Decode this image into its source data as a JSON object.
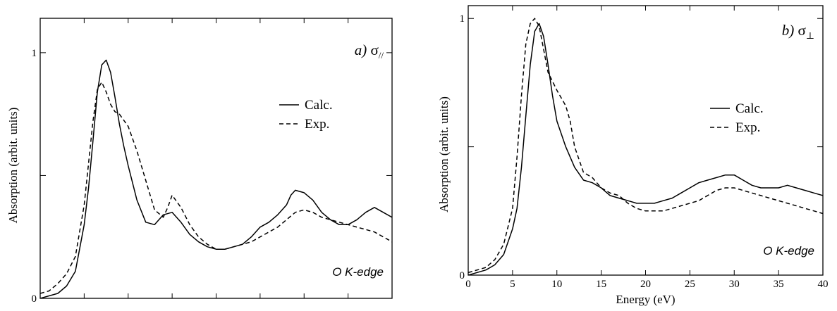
{
  "chart_data": [
    {
      "type": "line",
      "panel_label": "a) σ",
      "panel_subscript": "//",
      "edge_label": "O K-edge",
      "xlabel": "",
      "ylabel": "Absorption (arbit. units)",
      "xlim": [
        0,
        40
      ],
      "ylim": [
        0,
        1.14
      ],
      "x_ticks": [
        0,
        5,
        10,
        15,
        20,
        25,
        30,
        35,
        40
      ],
      "x_tick_labels_shown": false,
      "y_ticks": [
        {
          "value": 0,
          "label": "0"
        },
        {
          "value": 0.5,
          "label": ""
        },
        {
          "value": 1,
          "label": "1"
        }
      ],
      "grid": false,
      "legend_position": "right",
      "series": [
        {
          "name": "Calc.",
          "style": "solid",
          "x": [
            0,
            2,
            3,
            4,
            5,
            5.5,
            6,
            6.5,
            7,
            7.5,
            8,
            8.5,
            9,
            9.5,
            10,
            11,
            12,
            13,
            14,
            15,
            16,
            17,
            18,
            19,
            20,
            21,
            22,
            23,
            24,
            25,
            26,
            27,
            28,
            28.5,
            29,
            30,
            31,
            32,
            33,
            34,
            35,
            36,
            37,
            38,
            39,
            40
          ],
          "y": [
            0.0,
            0.02,
            0.05,
            0.11,
            0.3,
            0.45,
            0.64,
            0.84,
            0.95,
            0.97,
            0.92,
            0.82,
            0.71,
            0.62,
            0.54,
            0.4,
            0.31,
            0.3,
            0.34,
            0.35,
            0.31,
            0.26,
            0.23,
            0.21,
            0.2,
            0.2,
            0.21,
            0.22,
            0.25,
            0.29,
            0.31,
            0.34,
            0.38,
            0.42,
            0.44,
            0.43,
            0.4,
            0.35,
            0.32,
            0.3,
            0.3,
            0.32,
            0.35,
            0.37,
            0.35,
            0.33
          ]
        },
        {
          "name": "Exp.",
          "style": "dashed",
          "x": [
            0,
            1,
            2,
            2.5,
            3,
            4,
            5,
            5.5,
            6,
            6.5,
            7,
            7.5,
            8,
            8.5,
            9,
            10,
            11,
            12,
            13,
            14,
            14.5,
            15,
            16,
            17,
            18,
            19,
            20,
            21,
            22,
            23,
            24,
            25,
            26,
            27,
            28,
            29,
            30,
            31,
            32,
            33,
            34,
            35,
            36,
            37,
            38,
            39,
            40
          ],
          "y": [
            0.02,
            0.03,
            0.06,
            0.08,
            0.1,
            0.17,
            0.38,
            0.55,
            0.72,
            0.85,
            0.88,
            0.84,
            0.79,
            0.76,
            0.75,
            0.7,
            0.6,
            0.48,
            0.36,
            0.33,
            0.37,
            0.42,
            0.37,
            0.3,
            0.25,
            0.22,
            0.2,
            0.2,
            0.21,
            0.22,
            0.23,
            0.25,
            0.27,
            0.29,
            0.32,
            0.35,
            0.36,
            0.35,
            0.33,
            0.32,
            0.31,
            0.3,
            0.29,
            0.28,
            0.27,
            0.25,
            0.23
          ]
        }
      ]
    },
    {
      "type": "line",
      "panel_label": "b) σ",
      "panel_subscript": "⊥",
      "edge_label": "O K-edge",
      "xlabel": "Energy (eV)",
      "ylabel": "Absorption (arbit. units)",
      "xlim": [
        0,
        40
      ],
      "ylim": [
        0,
        1.05
      ],
      "x_ticks": [
        0,
        5,
        10,
        15,
        20,
        25,
        30,
        35,
        40
      ],
      "x_tick_labels_shown": true,
      "y_ticks": [
        {
          "value": 0,
          "label": "0"
        },
        {
          "value": 0.5,
          "label": ""
        },
        {
          "value": 1,
          "label": "1"
        }
      ],
      "grid": false,
      "legend_position": "right",
      "series": [
        {
          "name": "Calc.",
          "style": "solid",
          "x": [
            0,
            2,
            3,
            4,
            5,
            5.5,
            6,
            6.5,
            7,
            7.5,
            8,
            8.5,
            9,
            9.5,
            10,
            11,
            12,
            13,
            14,
            15,
            16,
            17,
            18,
            19,
            20,
            21,
            22,
            23,
            24,
            25,
            26,
            27,
            28,
            29,
            30,
            31,
            32,
            33,
            34,
            35,
            36,
            37,
            38,
            39,
            40
          ],
          "y": [
            0.0,
            0.02,
            0.04,
            0.08,
            0.18,
            0.26,
            0.42,
            0.62,
            0.82,
            0.95,
            0.98,
            0.93,
            0.82,
            0.7,
            0.6,
            0.5,
            0.42,
            0.37,
            0.36,
            0.34,
            0.31,
            0.3,
            0.29,
            0.28,
            0.28,
            0.28,
            0.29,
            0.3,
            0.32,
            0.34,
            0.36,
            0.37,
            0.38,
            0.39,
            0.39,
            0.37,
            0.35,
            0.34,
            0.34,
            0.34,
            0.35,
            0.34,
            0.33,
            0.32,
            0.31
          ]
        },
        {
          "name": "Exp.",
          "style": "dashed",
          "x": [
            0,
            2,
            3,
            4,
            5,
            5.5,
            6,
            6.5,
            7,
            7.5,
            8,
            8.5,
            9,
            10,
            11,
            11.5,
            12,
            13,
            14,
            15,
            16,
            17,
            18,
            19,
            20,
            21,
            22,
            23,
            24,
            25,
            26,
            27,
            28,
            29,
            30,
            31,
            32,
            33,
            34,
            35,
            36,
            37,
            38,
            39,
            40
          ],
          "y": [
            0.01,
            0.03,
            0.06,
            0.12,
            0.26,
            0.46,
            0.7,
            0.9,
            0.98,
            1.0,
            0.97,
            0.88,
            0.79,
            0.72,
            0.66,
            0.6,
            0.5,
            0.4,
            0.38,
            0.34,
            0.32,
            0.31,
            0.28,
            0.26,
            0.25,
            0.25,
            0.25,
            0.26,
            0.27,
            0.28,
            0.29,
            0.31,
            0.33,
            0.34,
            0.34,
            0.33,
            0.32,
            0.31,
            0.3,
            0.29,
            0.28,
            0.27,
            0.26,
            0.25,
            0.24
          ]
        }
      ]
    }
  ]
}
